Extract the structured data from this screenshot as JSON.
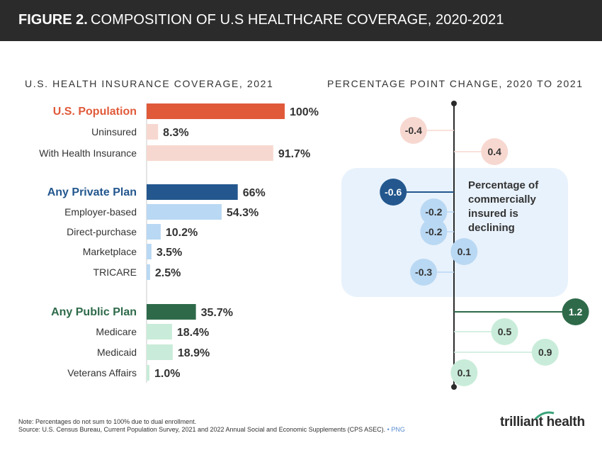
{
  "header": {
    "figure": "FIGURE 2.",
    "title": "COMPOSITION OF U.S HEALTHCARE COVERAGE, 2020-2021"
  },
  "subtitles": {
    "left": "U.S. HEALTH INSURANCE COVERAGE, 2021",
    "right": "PERCENTAGE POINT CHANGE, 2020 TO 2021"
  },
  "chart_data": [
    {
      "type": "bar",
      "title": "U.S. HEALTH INSURANCE COVERAGE, 2021",
      "orientation": "horizontal",
      "xlim": [
        0,
        100
      ],
      "categories": [
        "U.S. Population",
        "Uninsured",
        "With Health Insurance",
        "Any Private Plan",
        "Employer-based",
        "Direct-purchase",
        "Marketplace",
        "TRICARE",
        "Any Public Plan",
        "Medicare",
        "Medicaid",
        "Veterans Affairs"
      ],
      "values": [
        100,
        8.3,
        91.7,
        66,
        54.3,
        10.2,
        3.5,
        2.5,
        35.7,
        18.4,
        18.9,
        1.0
      ],
      "labels": [
        "100%",
        "8.3%",
        "91.7%",
        "66%",
        "54.3%",
        "10.2%",
        "3.5%",
        "2.5%",
        "35.7%",
        "18.4%",
        "18.9%",
        "1.0%"
      ],
      "groups": [
        "population",
        "population",
        "population",
        "private",
        "private",
        "private",
        "private",
        "private",
        "public",
        "public",
        "public",
        "public"
      ],
      "is_group_header": [
        true,
        false,
        false,
        true,
        false,
        false,
        false,
        false,
        true,
        false,
        false,
        false
      ]
    },
    {
      "type": "scatter",
      "title": "PERCENTAGE POINT CHANGE, 2020 TO 2021",
      "categories": [
        "U.S. Population",
        "Uninsured",
        "With Health Insurance",
        "Any Private Plan",
        "Employer-based",
        "Direct-purchase",
        "Marketplace",
        "TRICARE",
        "Any Public Plan",
        "Medicare",
        "Medicaid",
        "Veterans Affairs"
      ],
      "values": [
        null,
        -0.4,
        0.4,
        -0.6,
        -0.2,
        -0.2,
        0.1,
        -0.3,
        1.2,
        0.5,
        0.9,
        0.1
      ],
      "labels": [
        "",
        "-0.4",
        "0.4",
        "-0.6",
        "-0.2",
        "-0.2",
        "0.1",
        "-0.3",
        "1.2",
        "0.5",
        "0.9",
        "0.1"
      ],
      "groups": [
        "population",
        "population",
        "population",
        "private",
        "private",
        "private",
        "private",
        "private",
        "public",
        "public",
        "public",
        "public"
      ],
      "annotation": "Percentage of commercially insured is declining"
    }
  ],
  "colors": {
    "population_header": "#e05a3a",
    "population_light": "#f7d8d0",
    "private_header": "#23578e",
    "private_light": "#b9d8f3",
    "public_header": "#2e6a4a",
    "public_light": "#c8ecd9",
    "highlight_box": "#e8f2fc",
    "axis": "#2b2b2b"
  },
  "footer": {
    "note": "Note: Percentages do not sum to 100% due to dual enrollment.",
    "source": "Source: U.S. Census Bureau, Current Population Survey, 2021 and 2022 Annual Social and Economic Supplements (CPS ASEC).",
    "png": "PNG",
    "logo": "trilliant health"
  }
}
